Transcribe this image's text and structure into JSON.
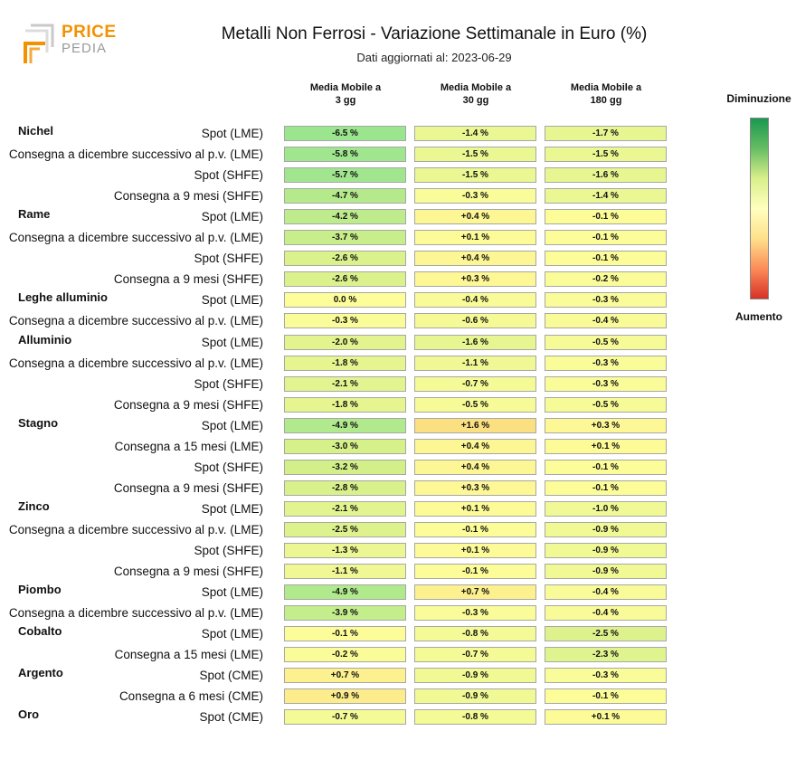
{
  "logo": {
    "line1": "PRICE",
    "line2": "PEDIA"
  },
  "header": {
    "title": "Metalli Non Ferrosi - Variazione Settimanale in Euro (%)",
    "subtitle_prefix": "Dati aggiornati al:",
    "date": "2023-06-29"
  },
  "legend": {
    "top": "Diminuzione",
    "bottom": "Aumento",
    "colors": [
      "#1a9850",
      "#66bd63",
      "#d9ef8b",
      "#ffffbf",
      "#fee08b",
      "#fc8d59",
      "#d73027"
    ]
  },
  "chart_data": {
    "type": "heatmap",
    "title": "Metalli Non Ferrosi - Variazione Settimanale in Euro (%)",
    "columns": [
      {
        "line1": "Media Mobile a",
        "line2": "3 gg"
      },
      {
        "line1": "Media Mobile a",
        "line2": "30 gg"
      },
      {
        "line1": "Media Mobile a",
        "line2": "180 gg"
      }
    ],
    "groups": [
      {
        "name": "Nichel",
        "rows": [
          {
            "label": "Spot (LME)",
            "values": [
              -6.5,
              -1.4,
              -1.7
            ],
            "text": [
              "-6.5 %",
              "-1.4 %",
              "-1.7 %"
            ]
          },
          {
            "label": "Consegna a dicembre successivo al p.v. (LME)",
            "values": [
              -5.8,
              -1.5,
              -1.5
            ],
            "text": [
              "-5.8 %",
              "-1.5 %",
              "-1.5 %"
            ]
          },
          {
            "label": "Spot (SHFE)",
            "values": [
              -5.7,
              -1.5,
              -1.6
            ],
            "text": [
              "-5.7 %",
              "-1.5 %",
              "-1.6 %"
            ]
          },
          {
            "label": "Consegna a 9 mesi (SHFE)",
            "values": [
              -4.7,
              -0.3,
              -1.4
            ],
            "text": [
              "-4.7 %",
              "-0.3 %",
              "-1.4 %"
            ]
          }
        ]
      },
      {
        "name": "Rame",
        "rows": [
          {
            "label": "Spot (LME)",
            "values": [
              -4.2,
              0.4,
              -0.1
            ],
            "text": [
              "-4.2 %",
              "+0.4 %",
              "-0.1 %"
            ]
          },
          {
            "label": "Consegna a dicembre successivo al p.v. (LME)",
            "values": [
              -3.7,
              0.1,
              -0.1
            ],
            "text": [
              "-3.7 %",
              "+0.1 %",
              "-0.1 %"
            ]
          },
          {
            "label": "Spot (SHFE)",
            "values": [
              -2.6,
              0.4,
              -0.1
            ],
            "text": [
              "-2.6 %",
              "+0.4 %",
              "-0.1 %"
            ]
          },
          {
            "label": "Consegna a 9 mesi (SHFE)",
            "values": [
              -2.6,
              0.3,
              -0.2
            ],
            "text": [
              "-2.6 %",
              "+0.3 %",
              "-0.2 %"
            ]
          }
        ]
      },
      {
        "name": "Leghe alluminio",
        "rows": [
          {
            "label": "Spot (LME)",
            "values": [
              0.0,
              -0.4,
              -0.3
            ],
            "text": [
              "0.0 %",
              "-0.4 %",
              "-0.3 %"
            ]
          },
          {
            "label": "Consegna a dicembre successivo al p.v. (LME)",
            "values": [
              -0.3,
              -0.6,
              -0.4
            ],
            "text": [
              "-0.3 %",
              "-0.6 %",
              "-0.4 %"
            ]
          }
        ]
      },
      {
        "name": "Alluminio",
        "rows": [
          {
            "label": "Spot (LME)",
            "values": [
              -2.0,
              -1.6,
              -0.5
            ],
            "text": [
              "-2.0 %",
              "-1.6 %",
              "-0.5 %"
            ]
          },
          {
            "label": "Consegna a dicembre successivo al p.v. (LME)",
            "values": [
              -1.8,
              -1.1,
              -0.3
            ],
            "text": [
              "-1.8 %",
              "-1.1 %",
              "-0.3 %"
            ]
          },
          {
            "label": "Spot (SHFE)",
            "values": [
              -2.1,
              -0.7,
              -0.3
            ],
            "text": [
              "-2.1 %",
              "-0.7 %",
              "-0.3 %"
            ]
          },
          {
            "label": "Consegna a 9 mesi (SHFE)",
            "values": [
              -1.8,
              -0.5,
              -0.5
            ],
            "text": [
              "-1.8 %",
              "-0.5 %",
              "-0.5 %"
            ]
          }
        ]
      },
      {
        "name": "Stagno",
        "rows": [
          {
            "label": "Spot (LME)",
            "values": [
              -4.9,
              1.6,
              0.3
            ],
            "text": [
              "-4.9 %",
              "+1.6 %",
              "+0.3 %"
            ]
          },
          {
            "label": "Consegna a 15 mesi (LME)",
            "values": [
              -3.0,
              0.4,
              0.1
            ],
            "text": [
              "-3.0 %",
              "+0.4 %",
              "+0.1 %"
            ]
          },
          {
            "label": "Spot (SHFE)",
            "values": [
              -3.2,
              0.4,
              -0.1
            ],
            "text": [
              "-3.2 %",
              "+0.4 %",
              "-0.1 %"
            ]
          },
          {
            "label": "Consegna a 9 mesi (SHFE)",
            "values": [
              -2.8,
              0.3,
              -0.1
            ],
            "text": [
              "-2.8 %",
              "+0.3 %",
              "-0.1 %"
            ]
          }
        ]
      },
      {
        "name": "Zinco",
        "rows": [
          {
            "label": "Spot (LME)",
            "values": [
              -2.1,
              0.1,
              -1.0
            ],
            "text": [
              "-2.1 %",
              "+0.1 %",
              "-1.0 %"
            ]
          },
          {
            "label": "Consegna a dicembre successivo al p.v. (LME)",
            "values": [
              -2.5,
              -0.1,
              -0.9
            ],
            "text": [
              "-2.5 %",
              "-0.1 %",
              "-0.9 %"
            ]
          },
          {
            "label": "Spot (SHFE)",
            "values": [
              -1.3,
              0.1,
              -0.9
            ],
            "text": [
              "-1.3 %",
              "+0.1 %",
              "-0.9 %"
            ]
          },
          {
            "label": "Consegna a 9 mesi (SHFE)",
            "values": [
              -1.1,
              -0.1,
              -0.9
            ],
            "text": [
              "-1.1 %",
              "-0.1 %",
              "-0.9 %"
            ]
          }
        ]
      },
      {
        "name": "Piombo",
        "rows": [
          {
            "label": "Spot (LME)",
            "values": [
              -4.9,
              0.7,
              -0.4
            ],
            "text": [
              "-4.9 %",
              "+0.7 %",
              "-0.4 %"
            ]
          },
          {
            "label": "Consegna a dicembre successivo al p.v. (LME)",
            "values": [
              -3.9,
              -0.3,
              -0.4
            ],
            "text": [
              "-3.9 %",
              "-0.3 %",
              "-0.4 %"
            ]
          }
        ]
      },
      {
        "name": "Cobalto",
        "rows": [
          {
            "label": "Spot (LME)",
            "values": [
              -0.1,
              -0.8,
              -2.5
            ],
            "text": [
              "-0.1 %",
              "-0.8 %",
              "-2.5 %"
            ]
          },
          {
            "label": "Consegna a 15 mesi (LME)",
            "values": [
              -0.2,
              -0.7,
              -2.3
            ],
            "text": [
              "-0.2 %",
              "-0.7 %",
              "-2.3 %"
            ]
          }
        ]
      },
      {
        "name": "Argento",
        "rows": [
          {
            "label": "Spot (CME)",
            "values": [
              0.7,
              -0.9,
              -0.3
            ],
            "text": [
              "+0.7 %",
              "-0.9 %",
              "-0.3 %"
            ]
          },
          {
            "label": "Consegna a 6 mesi (CME)",
            "values": [
              0.9,
              -0.9,
              -0.1
            ],
            "text": [
              "+0.9 %",
              "-0.9 %",
              "-0.1 %"
            ]
          }
        ]
      },
      {
        "name": "Oro",
        "rows": [
          {
            "label": "Spot (CME)",
            "values": [
              -0.7,
              -0.8,
              0.1
            ],
            "text": [
              "-0.7 %",
              "-0.8 %",
              "+0.1 %"
            ]
          }
        ]
      }
    ]
  }
}
